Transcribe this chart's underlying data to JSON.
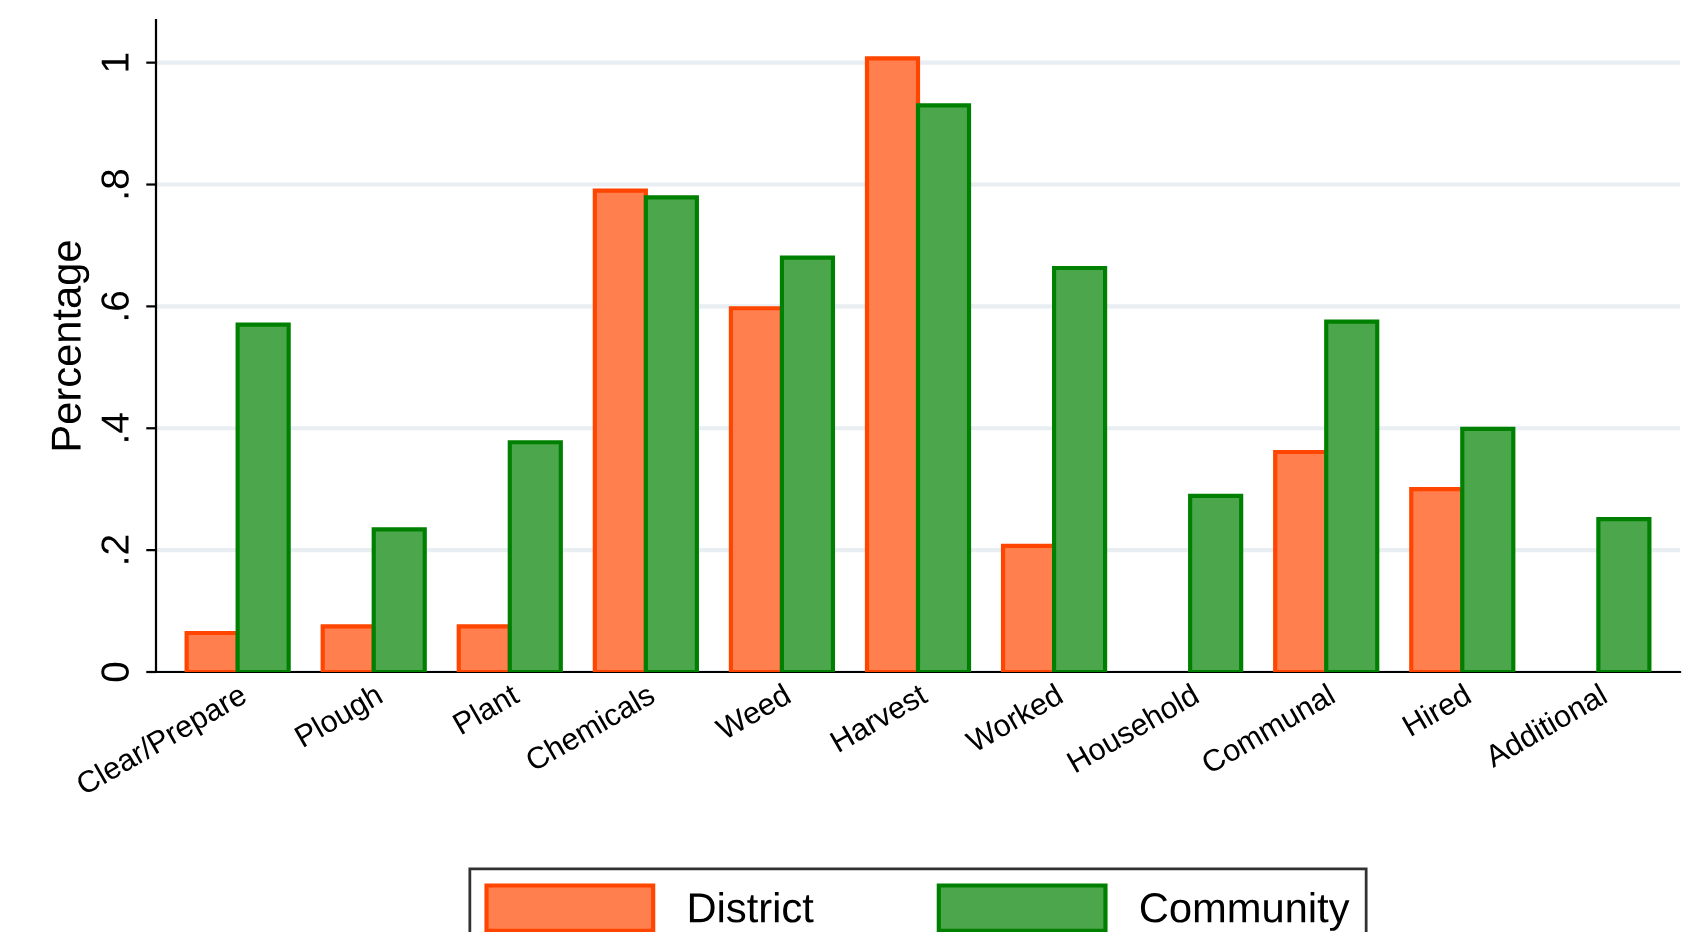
{
  "chart_data": {
    "type": "bar",
    "ylabel": "Percentage",
    "categories": [
      "Clear/Prepare",
      "Plough",
      "Plant",
      "Chemicals",
      "Weed",
      "Harvest",
      "Worked",
      "Household",
      "Communal",
      "Hired",
      "Additional"
    ],
    "series": [
      {
        "name": "District",
        "color": "#ff7f4f",
        "values": [
          0.064,
          0.075,
          0.075,
          0.79,
          0.597,
          1.007,
          0.207,
          null,
          0.361,
          0.3,
          null
        ]
      },
      {
        "name": "Community",
        "color": "#4ca64c",
        "values": [
          0.57,
          0.234,
          0.377,
          0.779,
          0.68,
          0.93,
          0.663,
          0.289,
          0.575,
          0.399,
          0.251
        ]
      }
    ],
    "ylim": [
      0,
      1.07
    ],
    "yticks": [
      0,
      {
        "value": 0.2,
        "label": ".2"
      },
      {
        "value": 0.4,
        "label": ".4"
      },
      {
        "value": 0.6,
        "label": ".6"
      },
      {
        "value": 0.8,
        "label": ".8"
      },
      1
    ],
    "grid": "y",
    "legend": "bottom"
  }
}
